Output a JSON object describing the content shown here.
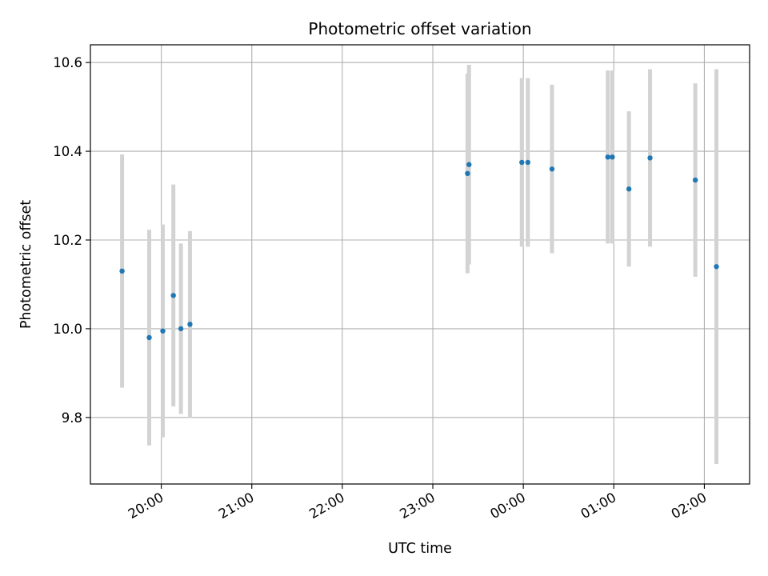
{
  "chart_data": {
    "type": "scatter",
    "title": "Photometric offset variation",
    "xlabel": "UTC time",
    "ylabel": "Photometric offset",
    "x_axis_kind": "time",
    "x_ticks": [
      "20:00",
      "21:00",
      "22:00",
      "23:00",
      "00:00",
      "01:00",
      "02:00"
    ],
    "y_ticks": [
      "9.8",
      "10.0",
      "10.2",
      "10.4",
      "10.6"
    ],
    "xlim": [
      "19:13",
      "02:30"
    ],
    "ylim": [
      9.65,
      10.64
    ],
    "grid": true,
    "legend": "none",
    "colors": {
      "point": "#1f77b4",
      "errorbar": "#d3d3d3",
      "grid": "#b0b0b0"
    },
    "points": [
      {
        "x": "19:34",
        "y": 10.13,
        "yerr": 0.263
      },
      {
        "x": "19:52",
        "y": 9.98,
        "yerr": 0.243
      },
      {
        "x": "20:01",
        "y": 9.995,
        "yerr": 0.24
      },
      {
        "x": "20:08",
        "y": 10.075,
        "yerr": 0.25
      },
      {
        "x": "20:13",
        "y": 10.0,
        "yerr": 0.192
      },
      {
        "x": "20:19",
        "y": 10.01,
        "yerr": 0.21
      },
      {
        "x": "23:23",
        "y": 10.35,
        "yerr": 0.225
      },
      {
        "x": "23:24",
        "y": 10.37,
        "yerr": 0.225
      },
      {
        "x": "23:59",
        "y": 10.375,
        "yerr": 0.19
      },
      {
        "x": "00:03",
        "y": 10.375,
        "yerr": 0.19
      },
      {
        "x": "00:19",
        "y": 10.36,
        "yerr": 0.19
      },
      {
        "x": "00:56",
        "y": 10.387,
        "yerr": 0.195
      },
      {
        "x": "00:59",
        "y": 10.387,
        "yerr": 0.195
      },
      {
        "x": "01:10",
        "y": 10.315,
        "yerr": 0.175
      },
      {
        "x": "01:24",
        "y": 10.385,
        "yerr": 0.2
      },
      {
        "x": "01:54",
        "y": 10.335,
        "yerr": 0.218
      },
      {
        "x": "02:08",
        "y": 10.14,
        "yerr": 0.445
      }
    ]
  }
}
